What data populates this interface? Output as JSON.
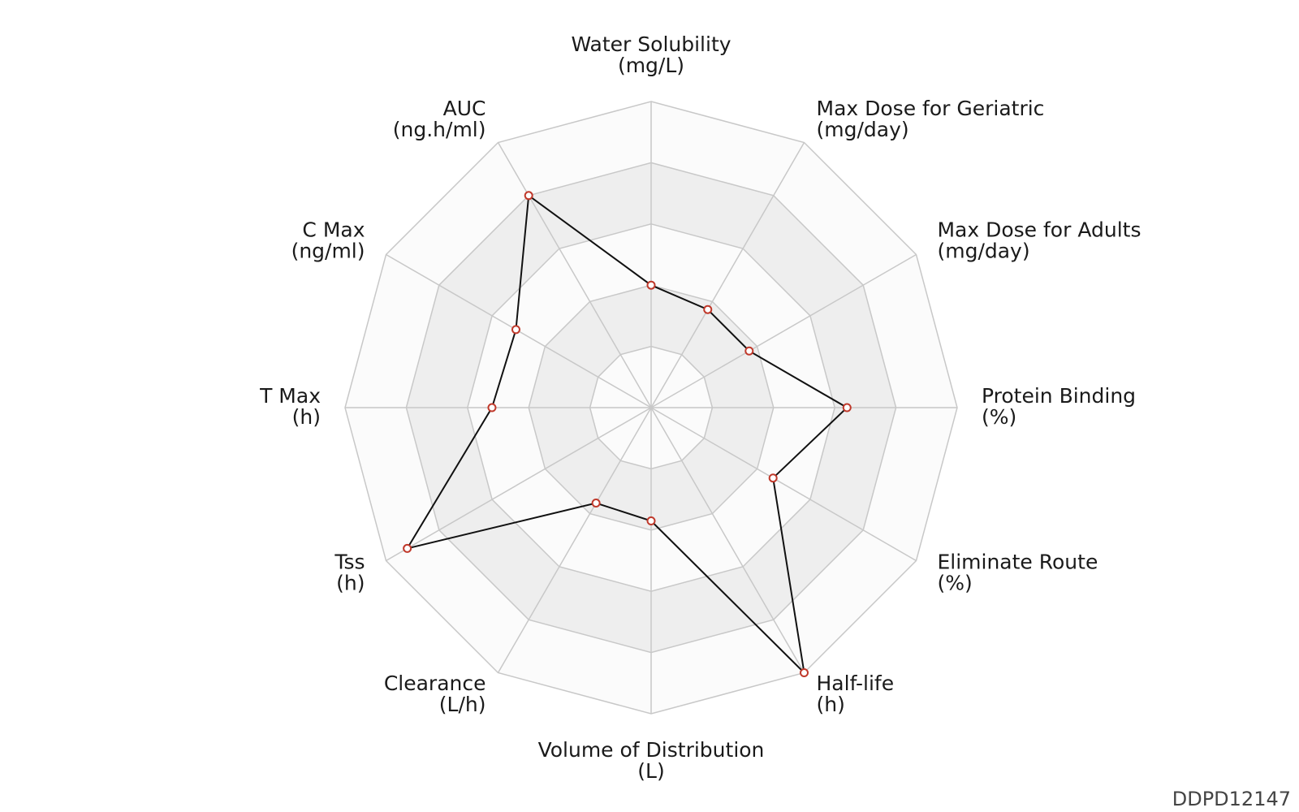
{
  "chart_data": {
    "type": "radar",
    "axes": [
      {
        "name": "Water Solubility",
        "unit": "(mg/L)",
        "value": 0.4
      },
      {
        "name": "Max Dose for Geriatric",
        "unit": "(mg/day)",
        "value": 0.37
      },
      {
        "name": "Max Dose for Adults",
        "unit": "(mg/day)",
        "value": 0.37
      },
      {
        "name": "Protein Binding",
        "unit": "(%)",
        "value": 0.64
      },
      {
        "name": "Eliminate Route",
        "unit": "(%)",
        "value": 0.46
      },
      {
        "name": "Half-life",
        "unit": "(h)",
        "value": 1.0
      },
      {
        "name": "Volume of Distribution",
        "unit": "(L)",
        "value": 0.37
      },
      {
        "name": "Clearance",
        "unit": "(L/h)",
        "value": 0.36
      },
      {
        "name": "Tss",
        "unit": "(h)",
        "value": 0.92
      },
      {
        "name": "T Max",
        "unit": "(h)",
        "value": 0.52
      },
      {
        "name": "C Max",
        "unit": "(ng/ml)",
        "value": 0.51
      },
      {
        "name": "AUC",
        "unit": "(ng.h/ml)",
        "value": 0.8
      }
    ],
    "rings": 5,
    "range": [
      0,
      1
    ],
    "legend": "none",
    "colors": {
      "line": "#111111",
      "marker_stroke": "#c0392b",
      "marker_fill": "#ffffff",
      "grid": "#c8c8c8",
      "band_light": "#fbfbfb",
      "band_dark": "#eeeeee"
    }
  },
  "footer": {
    "id_label": "DDPD12147"
  }
}
